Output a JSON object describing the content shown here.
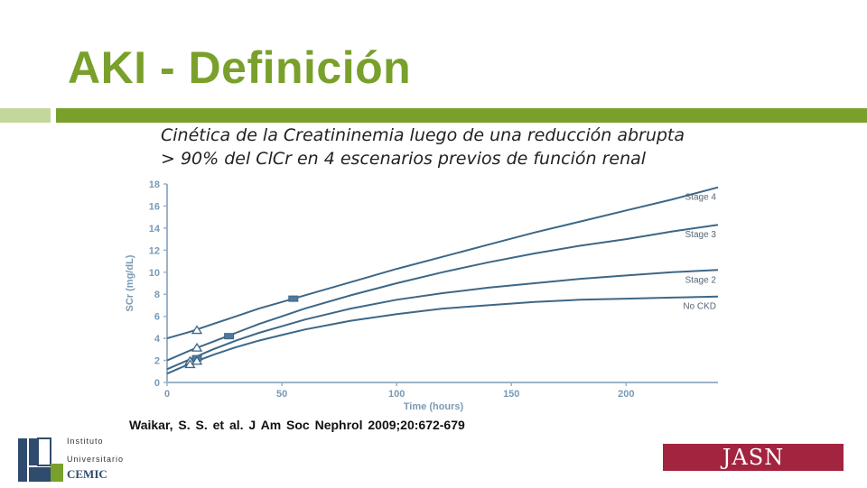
{
  "slide": {
    "title": "AKI - Definición",
    "subtitle_lines": [
      "Cinética de la Creatininemia luego de una reducción abrupta",
      "> 90% del ClCr en 4 escenarios previos de función renal"
    ],
    "citation": "Waikar, S. S. et al. J Am Soc Nephrol 2009;20:672-679",
    "accent_color": "#7aa02c",
    "accent_light_color": "#c4d79b"
  },
  "logos": {
    "cemic": {
      "line1": "Instituto",
      "line2": "Universitario",
      "line3": "CEMIC",
      "mark": "CEMIC"
    },
    "jasn": {
      "text": "JASN",
      "color": "#a2243e"
    }
  },
  "chart_data": {
    "type": "line",
    "xlabel": "Time (hours)",
    "ylabel": "SCr (mg/dL)",
    "xlim": [
      0,
      240
    ],
    "ylim": [
      0,
      18
    ],
    "xticks": [
      0,
      50,
      100,
      150,
      200
    ],
    "yticks": [
      0,
      2,
      4,
      6,
      8,
      10,
      12,
      14,
      16,
      18
    ],
    "grid": false,
    "line_color": "#3d6787",
    "series": [
      {
        "name": "Stage 4",
        "x": [
          0,
          10,
          20,
          30,
          40,
          50,
          60,
          80,
          100,
          120,
          140,
          160,
          180,
          200,
          220,
          240
        ],
        "y": [
          4.0,
          4.6,
          5.3,
          6.0,
          6.7,
          7.3,
          7.9,
          9.1,
          10.3,
          11.4,
          12.5,
          13.6,
          14.6,
          15.6,
          16.6,
          17.7
        ]
      },
      {
        "name": "Stage 3",
        "x": [
          0,
          10,
          20,
          30,
          40,
          50,
          60,
          80,
          100,
          120,
          140,
          160,
          180,
          200,
          220,
          240
        ],
        "y": [
          2.0,
          2.9,
          3.7,
          4.5,
          5.3,
          6.0,
          6.7,
          7.9,
          9.0,
          10.0,
          10.9,
          11.7,
          12.4,
          13.0,
          13.7,
          14.3
        ]
      },
      {
        "name": "Stage 2",
        "x": [
          0,
          10,
          20,
          30,
          40,
          50,
          60,
          80,
          100,
          120,
          140,
          160,
          180,
          200,
          220,
          240
        ],
        "y": [
          1.2,
          2.1,
          3.0,
          3.8,
          4.5,
          5.1,
          5.7,
          6.7,
          7.5,
          8.1,
          8.6,
          9.0,
          9.4,
          9.7,
          10.0,
          10.2
        ]
      },
      {
        "name": "No CKD",
        "x": [
          0,
          10,
          20,
          30,
          40,
          50,
          60,
          80,
          100,
          120,
          140,
          160,
          180,
          200,
          220,
          240
        ],
        "y": [
          0.8,
          1.7,
          2.5,
          3.2,
          3.8,
          4.3,
          4.8,
          5.6,
          6.2,
          6.7,
          7.0,
          7.3,
          7.5,
          7.6,
          7.7,
          7.8
        ]
      }
    ],
    "markers": [
      {
        "series": "Stage 4",
        "x": 13,
        "y": 4.7,
        "shape": "triangle"
      },
      {
        "series": "Stage 4",
        "x": 55,
        "y": 7.6,
        "shape": "square"
      },
      {
        "series": "Stage 3",
        "x": 13,
        "y": 3.1,
        "shape": "triangle"
      },
      {
        "series": "Stage 3",
        "x": 27,
        "y": 4.2,
        "shape": "square"
      },
      {
        "series": "Stage 2",
        "x": 10,
        "y": 1.9,
        "shape": "triangle"
      },
      {
        "series": "Stage 2",
        "x": 13,
        "y": 2.2,
        "shape": "square"
      },
      {
        "series": "No CKD",
        "x": 10,
        "y": 1.6,
        "shape": "triangle"
      },
      {
        "series": "No CKD",
        "x": 13,
        "y": 1.9,
        "shape": "triangle"
      }
    ]
  }
}
